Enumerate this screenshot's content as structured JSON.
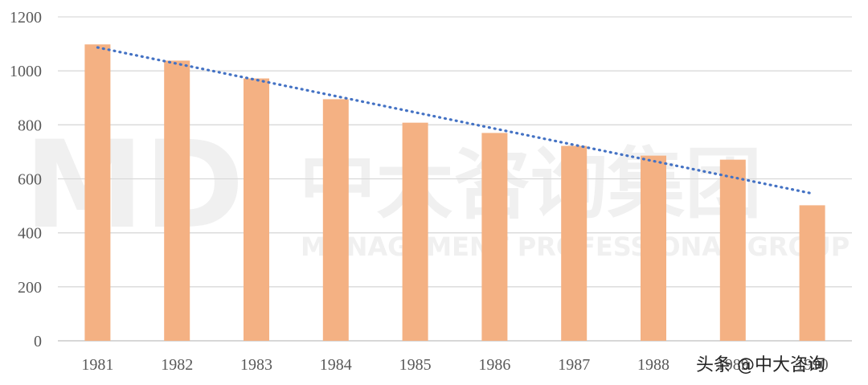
{
  "chart_data": {
    "type": "bar",
    "categories": [
      "1981",
      "1982",
      "1983",
      "1984",
      "1985",
      "1986",
      "1987",
      "1988",
      "1989",
      "1990"
    ],
    "values": [
      1098,
      1038,
      972,
      895,
      808,
      770,
      722,
      686,
      671,
      502
    ],
    "trendline": {
      "type": "linear",
      "style": "dotted"
    },
    "title": "",
    "xlabel": "",
    "ylabel": "",
    "ylim": [
      0,
      1200
    ],
    "yticks": [
      "0",
      "200",
      "400",
      "600",
      "800",
      "1000",
      "1200"
    ],
    "grid": true,
    "colors": {
      "bar": "#f4b183",
      "trend": "#4472c4",
      "grid": "#d9d9d9",
      "axis": "#bfbfbf"
    }
  },
  "watermark": {
    "logo": "MD",
    "name_cn": "中大咨询集团",
    "name_en": "MANAGEMENT PROFESSIONAL GROUP"
  },
  "source_tag": "头条 @中大咨询"
}
